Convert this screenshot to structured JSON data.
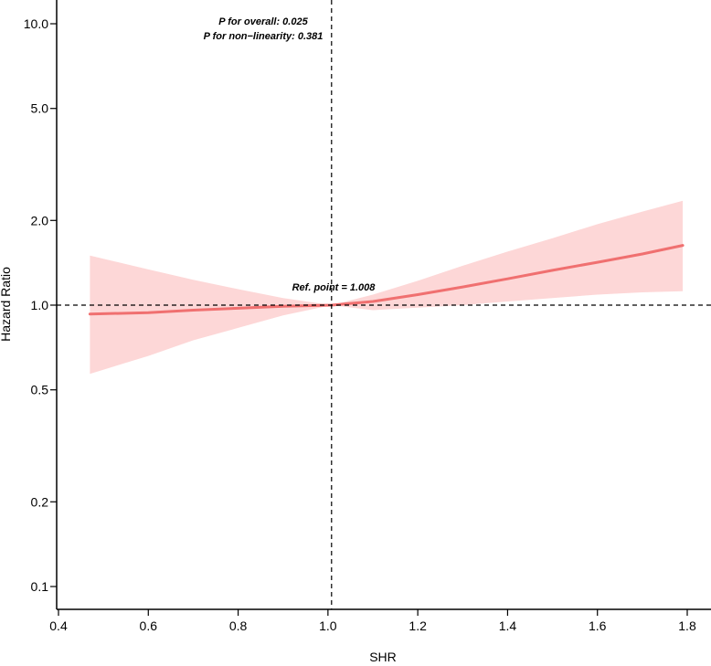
{
  "chart_data": {
    "type": "line",
    "title": "",
    "xlabel": "SHR",
    "ylabel": "Hazard Ratio",
    "y_scale": "log",
    "xlim": [
      0.4,
      1.8
    ],
    "ylim": [
      0.1,
      10.0
    ],
    "x_ticks": [
      0.4,
      0.6,
      0.8,
      1.0,
      1.2,
      1.4,
      1.6,
      1.8
    ],
    "x_tick_labels": [
      "0.4",
      "0.6",
      "0.8",
      "1.0",
      "1.2",
      "1.4",
      "1.6",
      "1.8"
    ],
    "y_ticks": [
      0.1,
      0.2,
      0.5,
      1.0,
      2.0,
      5.0,
      10.0
    ],
    "y_tick_labels": [
      "0.1",
      "0.2",
      "0.5",
      "1.0",
      "2.0",
      "5.0",
      "10.0"
    ],
    "grid": false,
    "series": [
      {
        "color": "#f07070",
        "x": [
          0.47,
          0.6,
          0.7,
          0.8,
          0.9,
          1.008,
          1.1,
          1.2,
          1.3,
          1.4,
          1.5,
          1.6,
          1.7,
          1.79
        ],
        "y": [
          0.93,
          0.94,
          0.96,
          0.975,
          0.99,
          1.0,
          1.03,
          1.09,
          1.16,
          1.24,
          1.33,
          1.42,
          1.52,
          1.63
        ],
        "ci_lower": [
          0.57,
          0.66,
          0.75,
          0.83,
          0.92,
          1.0,
          0.96,
          0.98,
          1.0,
          1.03,
          1.06,
          1.09,
          1.11,
          1.12
        ],
        "ci_upper": [
          1.5,
          1.34,
          1.23,
          1.14,
          1.06,
          1.0,
          1.09,
          1.22,
          1.38,
          1.55,
          1.73,
          1.94,
          2.15,
          2.35
        ],
        "band_color": "#fdd7d7"
      }
    ],
    "reference_lines": {
      "vertical_x": 1.008,
      "horizontal_y": 1.0
    },
    "annotations": {
      "p_overall": "P for overall: 0.025",
      "p_nonlinearity": "P for non−linearity: 0.381",
      "ref_point": "Ref. point = 1.008"
    }
  }
}
